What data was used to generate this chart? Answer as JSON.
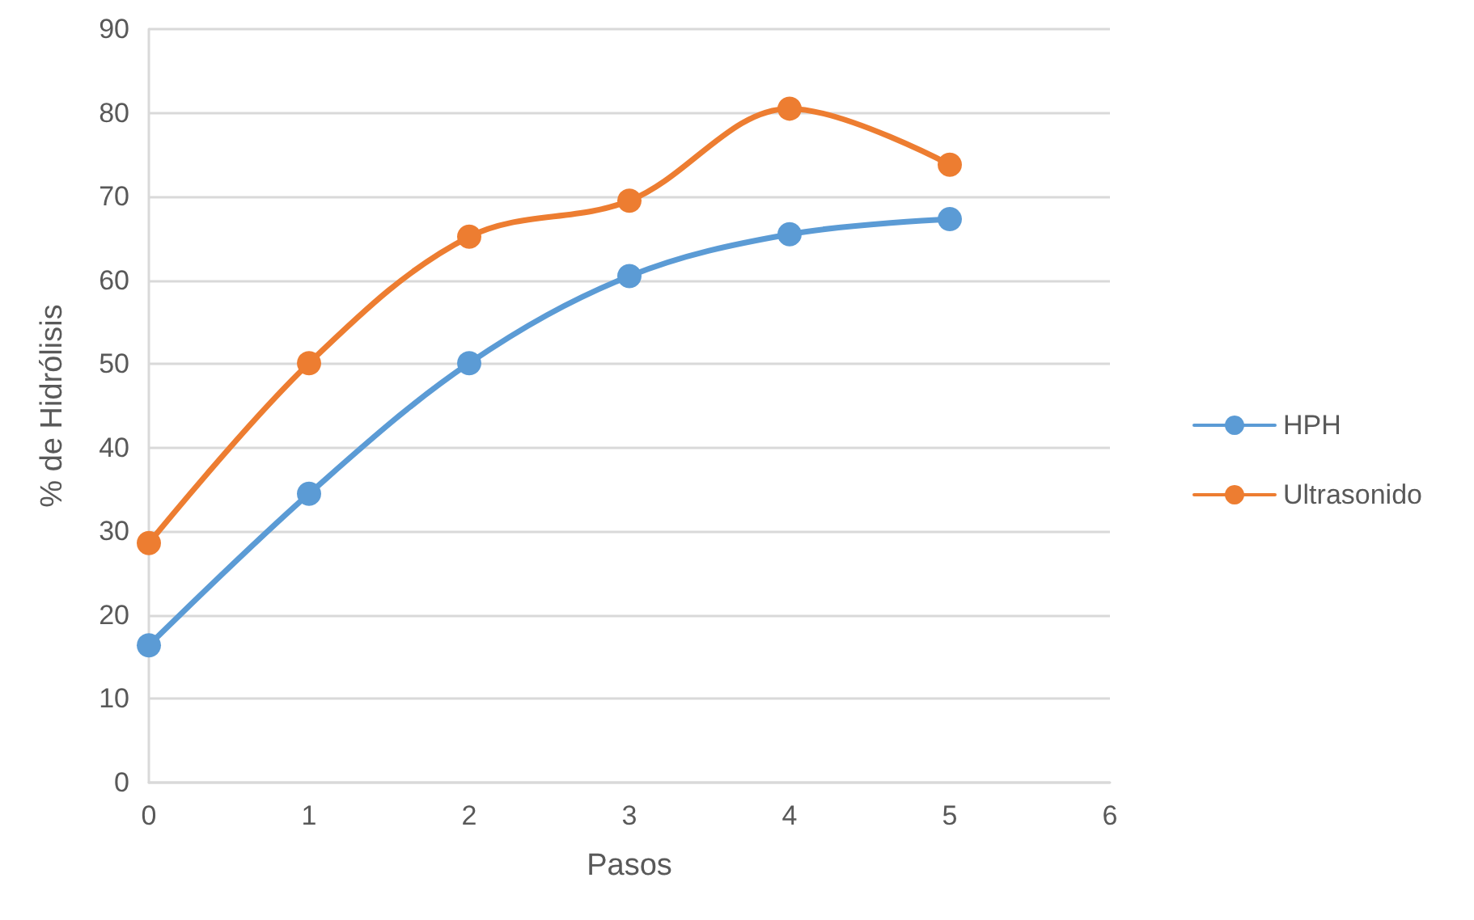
{
  "chart_data": {
    "type": "line",
    "xlabel": "Pasos",
    "ylabel": "% de Hidrólisis",
    "x": [
      0,
      1,
      2,
      3,
      4,
      5
    ],
    "series": [
      {
        "name": "HPH",
        "color": "#5b9bd5",
        "values": [
          16.4,
          34.5,
          50.1,
          60.5,
          65.5,
          67.3
        ]
      },
      {
        "name": "Ultrasonido",
        "color": "#ed7d31",
        "values": [
          28.6,
          50.1,
          65.2,
          69.5,
          80.5,
          73.8
        ]
      }
    ],
    "xlim": [
      0,
      6
    ],
    "xticks": [
      0,
      1,
      2,
      3,
      4,
      5,
      6
    ],
    "ylim": [
      0,
      90
    ],
    "yticks": [
      0,
      10,
      20,
      30,
      40,
      50,
      60,
      70,
      80,
      90
    ],
    "grid": "y",
    "legend": "right",
    "marker": "circle",
    "line_style": "solid"
  }
}
